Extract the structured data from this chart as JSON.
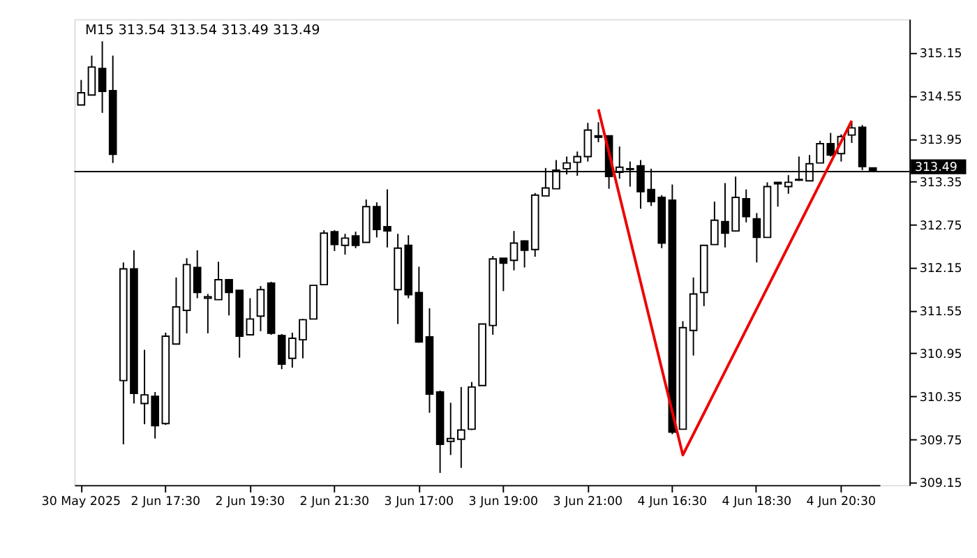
{
  "chart_data": {
    "type": "candlestick",
    "title": "M15  313.54 313.54 313.49 313.49",
    "categories": [
      "30 May 2025",
      null,
      null,
      null,
      null,
      null,
      null,
      null,
      "2 Jun 17:30",
      null,
      null,
      null,
      null,
      null,
      null,
      null,
      "2 Jun 19:30",
      null,
      null,
      null,
      null,
      null,
      null,
      null,
      "2 Jun 21:30",
      null,
      null,
      null,
      null,
      null,
      null,
      null,
      "3 Jun 17:00",
      null,
      null,
      null,
      null,
      null,
      null,
      null,
      "3 Jun 19:00",
      null,
      null,
      null,
      null,
      null,
      null,
      null,
      "3 Jun 21:00",
      null,
      null,
      null,
      null,
      null,
      null,
      null,
      "4 Jun 16:30",
      null,
      null,
      null,
      null,
      null,
      null,
      null,
      "4 Jun 18:30",
      null,
      null,
      null,
      null,
      null,
      null,
      null,
      "4 Jun 20:30",
      null,
      null,
      null
    ],
    "ohlc": [
      [
        314.42,
        314.77,
        314.42,
        314.59
      ],
      [
        314.56,
        315.11,
        314.56,
        314.95
      ],
      [
        314.93,
        315.31,
        314.31,
        314.61
      ],
      [
        314.62,
        315.11,
        313.61,
        313.73
      ],
      [
        310.57,
        312.22,
        309.68,
        312.13
      ],
      [
        312.13,
        312.39,
        310.25,
        310.39
      ],
      [
        310.25,
        311.0,
        309.96,
        310.37
      ],
      [
        310.35,
        310.41,
        309.76,
        309.94
      ],
      [
        309.97,
        311.24,
        309.95,
        311.19
      ],
      [
        311.08,
        312.01,
        311.08,
        311.6
      ],
      [
        311.55,
        312.28,
        311.23,
        312.19
      ],
      [
        312.15,
        312.39,
        311.72,
        311.8
      ],
      [
        311.72,
        311.78,
        311.23,
        311.74
      ],
      [
        311.7,
        312.23,
        311.7,
        311.98
      ],
      [
        311.98,
        311.98,
        311.48,
        311.8
      ],
      [
        311.83,
        311.83,
        310.89,
        311.19
      ],
      [
        311.21,
        311.72,
        311.21,
        311.43
      ],
      [
        311.47,
        311.89,
        311.26,
        311.84
      ],
      [
        311.93,
        311.95,
        311.21,
        311.23
      ],
      [
        311.2,
        311.22,
        310.73,
        310.8
      ],
      [
        310.88,
        311.24,
        310.75,
        311.16
      ],
      [
        311.14,
        311.43,
        310.88,
        311.42
      ],
      [
        311.43,
        311.9,
        311.43,
        311.9
      ],
      [
        311.91,
        312.67,
        311.91,
        312.63
      ],
      [
        312.65,
        312.67,
        312.38,
        312.47
      ],
      [
        312.46,
        312.62,
        312.33,
        312.56
      ],
      [
        312.59,
        312.65,
        312.42,
        312.46
      ],
      [
        312.5,
        313.1,
        312.5,
        313.0
      ],
      [
        313.0,
        313.06,
        312.57,
        312.68
      ],
      [
        312.72,
        313.24,
        312.43,
        312.66
      ],
      [
        311.84,
        312.62,
        311.36,
        312.42
      ],
      [
        312.46,
        312.6,
        311.72,
        311.77
      ],
      [
        311.8,
        312.16,
        311.1,
        311.11
      ],
      [
        311.18,
        311.58,
        310.12,
        310.38
      ],
      [
        310.41,
        310.43,
        309.28,
        309.68
      ],
      [
        309.72,
        310.26,
        309.53,
        309.76
      ],
      [
        309.75,
        310.48,
        309.35,
        309.88
      ],
      [
        309.89,
        310.55,
        309.88,
        310.48
      ],
      [
        310.5,
        311.36,
        310.5,
        311.36
      ],
      [
        311.34,
        312.31,
        311.21,
        312.27
      ],
      [
        312.28,
        312.28,
        311.82,
        312.21
      ],
      [
        312.25,
        312.66,
        312.11,
        312.49
      ],
      [
        312.52,
        312.53,
        312.15,
        312.39
      ],
      [
        312.4,
        313.19,
        312.3,
        313.16
      ],
      [
        313.15,
        313.54,
        313.15,
        313.26
      ],
      [
        313.25,
        313.65,
        313.25,
        313.51
      ],
      [
        313.53,
        313.7,
        313.45,
        313.61
      ],
      [
        313.62,
        313.77,
        313.43,
        313.7
      ],
      [
        313.7,
        314.17,
        313.63,
        314.07
      ],
      [
        313.99,
        314.18,
        313.9,
        313.97
      ],
      [
        313.99,
        313.99,
        313.25,
        313.42
      ],
      [
        313.48,
        313.84,
        313.39,
        313.55
      ],
      [
        313.53,
        313.63,
        313.28,
        313.52
      ],
      [
        313.57,
        313.65,
        312.97,
        313.21
      ],
      [
        313.24,
        313.53,
        313.01,
        313.07
      ],
      [
        313.13,
        313.16,
        312.42,
        312.49
      ],
      [
        313.09,
        313.31,
        309.82,
        309.85
      ],
      [
        309.89,
        311.4,
        309.89,
        311.31
      ],
      [
        311.27,
        312.01,
        310.92,
        311.78
      ],
      [
        311.8,
        312.46,
        311.61,
        312.46
      ],
      [
        312.47,
        313.07,
        312.47,
        312.81
      ],
      [
        312.79,
        313.33,
        312.43,
        312.63
      ],
      [
        312.66,
        313.42,
        312.65,
        313.13
      ],
      [
        313.11,
        313.24,
        312.78,
        312.86
      ],
      [
        312.83,
        312.91,
        312.22,
        312.57
      ],
      [
        312.57,
        313.34,
        312.57,
        313.28
      ],
      [
        313.34,
        313.34,
        313.0,
        313.32
      ],
      [
        313.28,
        313.44,
        313.18,
        313.34
      ],
      [
        313.37,
        313.7,
        313.36,
        313.38
      ],
      [
        313.36,
        313.72,
        313.36,
        313.6
      ],
      [
        313.61,
        313.92,
        313.61,
        313.88
      ],
      [
        313.88,
        314.03,
        313.7,
        313.72
      ],
      [
        313.74,
        314.01,
        313.63,
        313.98
      ],
      [
        314.0,
        314.18,
        313.89,
        314.1
      ],
      [
        314.11,
        314.14,
        313.51,
        313.56
      ],
      [
        313.54,
        313.54,
        313.49,
        313.49
      ]
    ],
    "series": [
      {
        "type": "line",
        "color": "#ee0000",
        "values": [
          null,
          null,
          null,
          null,
          null,
          null,
          null,
          null,
          null,
          null,
          null,
          null,
          null,
          null,
          null,
          null,
          null,
          null,
          null,
          null,
          null,
          null,
          null,
          null,
          null,
          null,
          null,
          null,
          null,
          null,
          null,
          null,
          null,
          null,
          null,
          null,
          null,
          null,
          null,
          null,
          null,
          null,
          null,
          null,
          null,
          null,
          null,
          null,
          null,
          314.36,
          null,
          null,
          null,
          null,
          null,
          null,
          null,
          309.53,
          null,
          null,
          null,
          null,
          null,
          null,
          null,
          null,
          null,
          null,
          null,
          null,
          null,
          null,
          null,
          314.2,
          null,
          null
        ]
      }
    ],
    "ylim": [
      309.11,
      315.62
    ],
    "yticks": [
      309.15,
      309.75,
      310.35,
      310.95,
      311.55,
      312.15,
      312.75,
      313.35,
      313.95,
      314.55,
      315.15
    ],
    "ref_lines": [
      {
        "axis": "y",
        "value": 313.49,
        "label": "313.49",
        "color": "#000000"
      }
    ],
    "grid": false
  }
}
